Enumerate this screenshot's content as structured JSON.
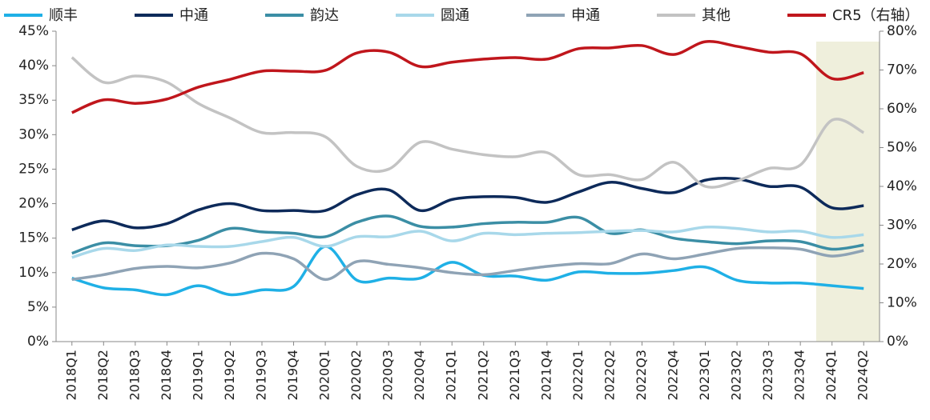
{
  "chart_data": {
    "type": "line",
    "categories": [
      "2018Q1",
      "2018Q2",
      "2018Q3",
      "2018Q4",
      "2019Q1",
      "2019Q2",
      "2019Q3",
      "2019Q4",
      "2020Q1",
      "2020Q2",
      "2020Q3",
      "2020Q4",
      "2021Q1",
      "2021Q2",
      "2021Q3",
      "2021Q4",
      "2022Q1",
      "2022Q2",
      "2022Q3",
      "2022Q4",
      "2023Q1",
      "2023Q2",
      "2023Q3",
      "2023Q4",
      "2024Q1",
      "2024Q2"
    ],
    "series": [
      {
        "name": "顺丰",
        "color": "#1fb0e6",
        "values": [
          9.2,
          7.8,
          7.5,
          6.8,
          8.1,
          6.8,
          7.5,
          8.0,
          13.8,
          8.9,
          9.2,
          9.2,
          11.5,
          9.6,
          9.5,
          8.9,
          10.1,
          9.9,
          9.9,
          10.3,
          10.8,
          8.9,
          8.5,
          8.5,
          8.1,
          7.7
        ]
      },
      {
        "name": "中通",
        "color": "#0d2a5a",
        "values": [
          16.2,
          17.5,
          16.5,
          17.1,
          19.1,
          20.0,
          19.0,
          19.0,
          19.0,
          21.3,
          22.0,
          19.0,
          20.6,
          21.0,
          20.9,
          20.2,
          21.7,
          23.1,
          22.2,
          21.6,
          23.4,
          23.6,
          22.5,
          22.4,
          19.4,
          19.7
        ]
      },
      {
        "name": "韵达",
        "color": "#3b8ea5",
        "values": [
          12.8,
          14.3,
          13.9,
          13.9,
          14.7,
          16.4,
          15.9,
          15.7,
          15.2,
          17.3,
          18.2,
          16.7,
          16.6,
          17.1,
          17.3,
          17.3,
          18.0,
          15.7,
          16.2,
          15.0,
          14.5,
          14.2,
          14.6,
          14.5,
          13.4,
          14.0
        ]
      },
      {
        "name": "圆通",
        "color": "#a8d8ea",
        "values": [
          12.2,
          13.5,
          13.2,
          14.0,
          13.8,
          13.8,
          14.5,
          15.1,
          13.8,
          15.2,
          15.2,
          16.0,
          14.6,
          15.7,
          15.5,
          15.7,
          15.8,
          16.0,
          16.1,
          15.9,
          16.6,
          16.4,
          15.9,
          16.0,
          15.1,
          15.5
        ]
      },
      {
        "name": "申通",
        "color": "#8fa3b5",
        "values": [
          9.0,
          9.7,
          10.6,
          10.9,
          10.7,
          11.4,
          12.8,
          12.0,
          9.0,
          11.6,
          11.2,
          10.7,
          10.0,
          9.7,
          10.3,
          10.9,
          11.3,
          11.3,
          12.7,
          12.0,
          12.7,
          13.5,
          13.6,
          13.4,
          12.4,
          13.2
        ]
      },
      {
        "name": "其他",
        "color": "#c3c3c3",
        "values": [
          41.2,
          37.6,
          38.5,
          37.6,
          34.5,
          32.4,
          30.3,
          30.3,
          29.7,
          25.4,
          25.0,
          28.9,
          27.9,
          27.1,
          26.8,
          27.4,
          24.2,
          24.2,
          23.5,
          26.0,
          22.5,
          23.3,
          25.1,
          25.6,
          32.1,
          30.3
        ]
      },
      {
        "name": "CR5（右轴）",
        "color": "#c0161c",
        "axis": "y2",
        "values": [
          59.0,
          62.3,
          61.4,
          62.5,
          65.6,
          67.6,
          69.7,
          69.7,
          69.9,
          74.4,
          74.6,
          70.9,
          72.0,
          72.8,
          73.2,
          72.8,
          75.5,
          75.7,
          76.3,
          74.0,
          77.3,
          76.1,
          74.6,
          74.2,
          67.8,
          69.3
        ]
      }
    ],
    "ylim": [
      0,
      45
    ],
    "yticks": [
      {
        "value": 0,
        "label": "0%"
      },
      {
        "value": 5,
        "label": "5%"
      },
      {
        "value": 10,
        "label": "10%"
      },
      {
        "value": 15,
        "label": "15%"
      },
      {
        "value": 20,
        "label": "20%"
      },
      {
        "value": 25,
        "label": "25%"
      },
      {
        "value": 30,
        "label": "30%"
      },
      {
        "value": 35,
        "label": "35%"
      },
      {
        "value": 40,
        "label": "40%"
      },
      {
        "value": 45,
        "label": "45%"
      }
    ],
    "y2lim": [
      0,
      80
    ],
    "y2ticks": [
      {
        "value": 0,
        "label": "0%"
      },
      {
        "value": 10,
        "label": "10%"
      },
      {
        "value": 20,
        "label": "20%"
      },
      {
        "value": 30,
        "label": "30%"
      },
      {
        "value": 40,
        "label": "40%"
      },
      {
        "value": 50,
        "label": "50%"
      },
      {
        "value": 60,
        "label": "60%"
      },
      {
        "value": 70,
        "label": "70%"
      },
      {
        "value": 80,
        "label": "80%"
      }
    ],
    "legend": "top"
  }
}
